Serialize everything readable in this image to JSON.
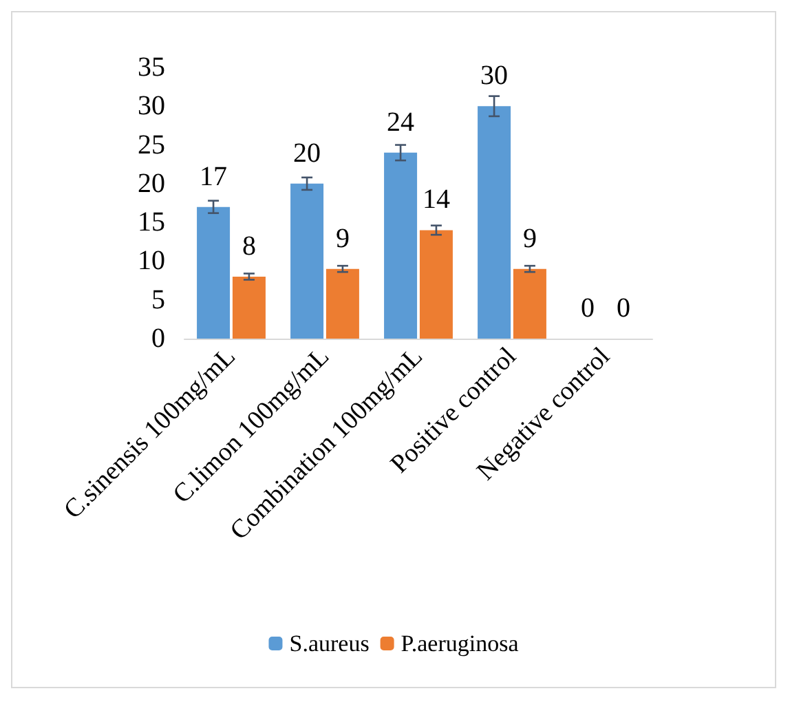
{
  "chart_data": {
    "type": "bar",
    "categories": [
      "C.sinensis 100mg/mL",
      "C.limon 100mg/mL",
      "Combination 100mg/mL",
      "Positive control",
      "Negative control"
    ],
    "series": [
      {
        "name": "S.aureus",
        "color": "#5b9bd5",
        "values": [
          17,
          20,
          24,
          30,
          0
        ],
        "errors": [
          0.8,
          0.8,
          1,
          1.3,
          null
        ]
      },
      {
        "name": "P.aeruginosa",
        "color": "#ed7d31",
        "values": [
          8,
          9,
          14,
          9,
          0
        ],
        "errors": [
          0.4,
          0.4,
          0.6,
          0.4,
          null
        ]
      }
    ],
    "ylim": [
      0,
      35
    ],
    "yticks": [
      0,
      5,
      10,
      15,
      20,
      25,
      30,
      35
    ],
    "grid": false,
    "legend": "bottom",
    "data_labels": true
  }
}
